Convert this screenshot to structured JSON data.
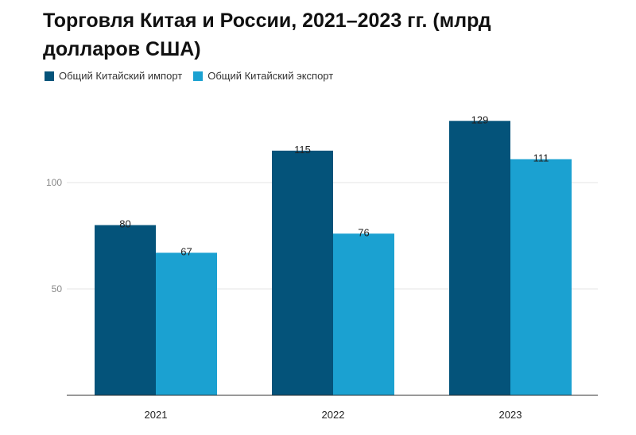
{
  "colors": {
    "import": "#04537a",
    "export": "#1ba1d1",
    "grid": "#e6e6e6",
    "axis": "#333333"
  },
  "chart_data": {
    "type": "bar",
    "title": "Торговля Китая и России, 2021–2023 гг. (млрд долларов США)",
    "xlabel": "",
    "ylabel": "",
    "categories": [
      "2021",
      "2022",
      "2023"
    ],
    "series": [
      {
        "name": "Общий Китайский импорт",
        "values": [
          80,
          115,
          129
        ]
      },
      {
        "name": "Общий Китайский экспорт",
        "values": [
          67,
          76,
          111
        ]
      }
    ],
    "ylim": [
      0,
      140
    ],
    "yticks": [
      50,
      100
    ],
    "grid": true,
    "legend_position": "top-left"
  }
}
